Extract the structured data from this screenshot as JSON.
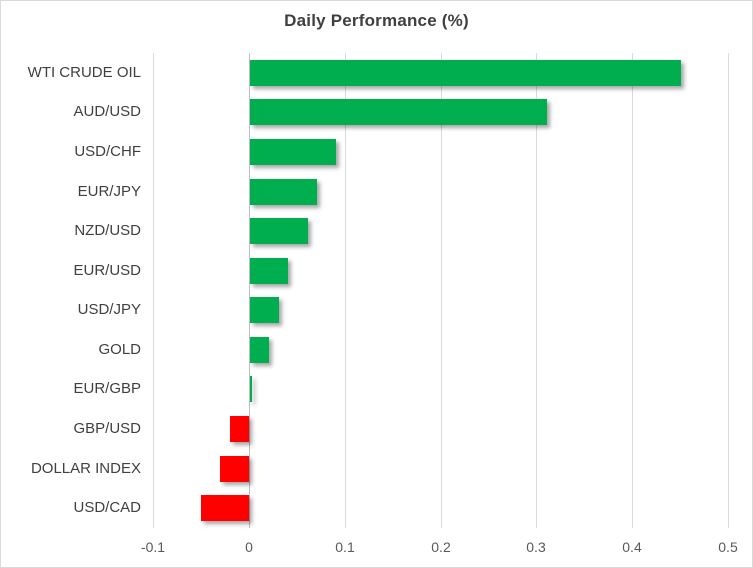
{
  "title": "Daily Performance (%)",
  "chart_data": {
    "type": "bar",
    "orientation": "horizontal",
    "title": "Daily Performance (%)",
    "xlabel": "",
    "ylabel": "",
    "categories": [
      "WTI CRUDE OIL",
      "AUD/USD",
      "USD/CHF",
      "EUR/JPY",
      "NZD/USD",
      "EUR/USD",
      "USD/JPY",
      "GOLD",
      "EUR/GBP",
      "GBP/USD",
      "DOLLAR INDEX",
      "USD/CAD"
    ],
    "values": [
      0.45,
      0.31,
      0.09,
      0.07,
      0.06,
      0.04,
      0.03,
      0.02,
      0.002,
      -0.02,
      -0.03,
      -0.05
    ],
    "xlim": [
      -0.1,
      0.5
    ],
    "x_ticks": [
      -0.1,
      0,
      0.1,
      0.2,
      0.3,
      0.4,
      0.5
    ],
    "x_tick_labels": [
      "-0.1",
      "0",
      "0.1",
      "0.2",
      "0.3",
      "0.4",
      "0.5"
    ],
    "grid": true,
    "legend": false,
    "colors": {
      "positive": "#00AE50",
      "negative": "#FF0000",
      "gridline": "#D9D9D9",
      "axis_line": "#BFBFBF",
      "title_text": "#404040",
      "category_text": "#404040",
      "tick_text": "#595959",
      "background": "#FFFFFF"
    }
  }
}
